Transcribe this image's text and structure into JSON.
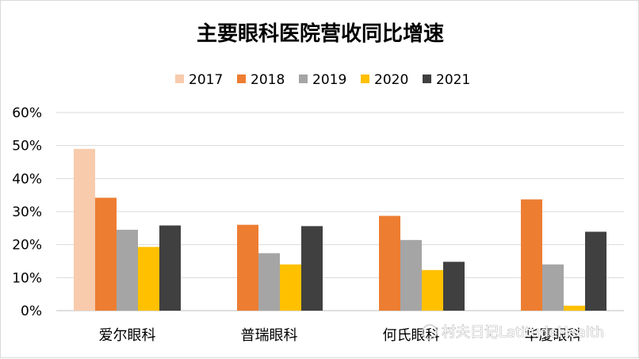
{
  "chart_data": {
    "type": "bar",
    "title": "主要眼科医院营收同比增速",
    "categories": [
      "爱尔眼科",
      "普瑞眼科",
      "何氏眼科",
      "华厦眼科"
    ],
    "series": [
      {
        "name": "2017",
        "color": "#F8CBAD",
        "values": [
          0.49,
          null,
          null,
          null
        ]
      },
      {
        "name": "2018",
        "color": "#ED7D31",
        "values": [
          0.342,
          0.26,
          0.287,
          0.337
        ]
      },
      {
        "name": "2019",
        "color": "#A5A5A5",
        "values": [
          0.245,
          0.174,
          0.214,
          0.14
        ]
      },
      {
        "name": "2020",
        "color": "#FFC000",
        "values": [
          0.193,
          0.14,
          0.123,
          0.015
        ]
      },
      {
        "name": "2021",
        "color": "#404040",
        "values": [
          0.258,
          0.256,
          0.148,
          0.239
        ]
      }
    ],
    "yticks": [
      "0%",
      "10%",
      "20%",
      "30%",
      "40%",
      "50%",
      "60%"
    ],
    "ylim": [
      0,
      0.6
    ],
    "grid": true,
    "legend_position": "top",
    "watermark": "村夫日记LatitudeHealth"
  }
}
